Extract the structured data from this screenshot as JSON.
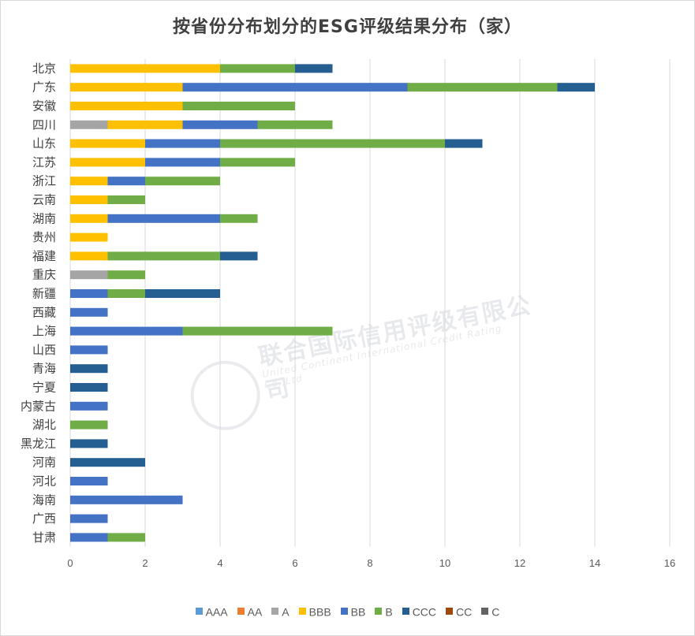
{
  "title": "按省份分布划分的ESG评级结果分布（家）",
  "watermark": {
    "name": "联合国际信用评级有限公司",
    "english": "United Continent International Credit Rating Co.,Ltd"
  },
  "chart_data": {
    "type": "bar",
    "orientation": "horizontal",
    "stacked": true,
    "title": "按省份分布划分的ESG评级结果分布（家）",
    "xlabel": "",
    "ylabel": "",
    "xlim": [
      0,
      16
    ],
    "xticks": [
      0,
      2,
      4,
      6,
      8,
      10,
      12,
      14,
      16
    ],
    "grid": "vertical",
    "legend_position": "bottom",
    "categories": [
      "北京",
      "广东",
      "安徽",
      "四川",
      "山东",
      "江苏",
      "浙江",
      "云南",
      "湖南",
      "贵州",
      "福建",
      "重庆",
      "新疆",
      "西藏",
      "上海",
      "山西",
      "青海",
      "宁夏",
      "内蒙古",
      "湖北",
      "黑龙江",
      "河南",
      "河北",
      "海南",
      "广西",
      "甘肃"
    ],
    "series": [
      {
        "name": "AAA",
        "color": "#5b9bd5",
        "values": [
          0,
          0,
          0,
          0,
          0,
          0,
          0,
          0,
          0,
          0,
          0,
          0,
          0,
          0,
          0,
          0,
          0,
          0,
          0,
          0,
          0,
          0,
          0,
          0,
          0,
          0
        ]
      },
      {
        "name": "AA",
        "color": "#ed7d31",
        "values": [
          0,
          0,
          0,
          0,
          0,
          0,
          0,
          0,
          0,
          0,
          0,
          0,
          0,
          0,
          0,
          0,
          0,
          0,
          0,
          0,
          0,
          0,
          0,
          0,
          0,
          0
        ]
      },
      {
        "name": "A",
        "color": "#a5a5a5",
        "values": [
          0,
          0,
          0,
          1,
          0,
          0,
          0,
          0,
          0,
          0,
          0,
          1,
          0,
          0,
          0,
          0,
          0,
          0,
          0,
          0,
          0,
          0,
          0,
          0,
          0,
          0
        ]
      },
      {
        "name": "BBB",
        "color": "#ffc000",
        "values": [
          4,
          3,
          3,
          2,
          2,
          2,
          1,
          1,
          1,
          1,
          1,
          0,
          0,
          0,
          0,
          0,
          0,
          0,
          0,
          0,
          0,
          0,
          0,
          0,
          0,
          0
        ]
      },
      {
        "name": "BB",
        "color": "#4472c4",
        "values": [
          0,
          6,
          0,
          2,
          2,
          2,
          1,
          0,
          3,
          0,
          0,
          0,
          1,
          1,
          3,
          1,
          0,
          0,
          1,
          0,
          0,
          0,
          1,
          3,
          1,
          1
        ]
      },
      {
        "name": "B",
        "color": "#70ad47",
        "values": [
          2,
          4,
          3,
          2,
          6,
          2,
          2,
          1,
          1,
          0,
          3,
          1,
          1,
          0,
          4,
          0,
          0,
          0,
          0,
          1,
          0,
          0,
          0,
          0,
          0,
          1
        ]
      },
      {
        "name": "CCC",
        "color": "#255e91",
        "values": [
          1,
          1,
          0,
          0,
          1,
          0,
          0,
          0,
          0,
          0,
          1,
          0,
          2,
          0,
          0,
          0,
          1,
          1,
          0,
          0,
          1,
          2,
          0,
          0,
          0,
          0
        ]
      },
      {
        "name": "CC",
        "color": "#9e480e",
        "values": [
          0,
          0,
          0,
          0,
          0,
          0,
          0,
          0,
          0,
          0,
          0,
          0,
          0,
          0,
          0,
          0,
          0,
          0,
          0,
          0,
          0,
          0,
          0,
          0,
          0,
          0
        ]
      },
      {
        "name": "C",
        "color": "#636363",
        "values": [
          0,
          0,
          0,
          0,
          0,
          0,
          0,
          0,
          0,
          0,
          0,
          0,
          0,
          0,
          0,
          0,
          0,
          0,
          0,
          0,
          0,
          0,
          0,
          0,
          0,
          0
        ]
      }
    ]
  }
}
